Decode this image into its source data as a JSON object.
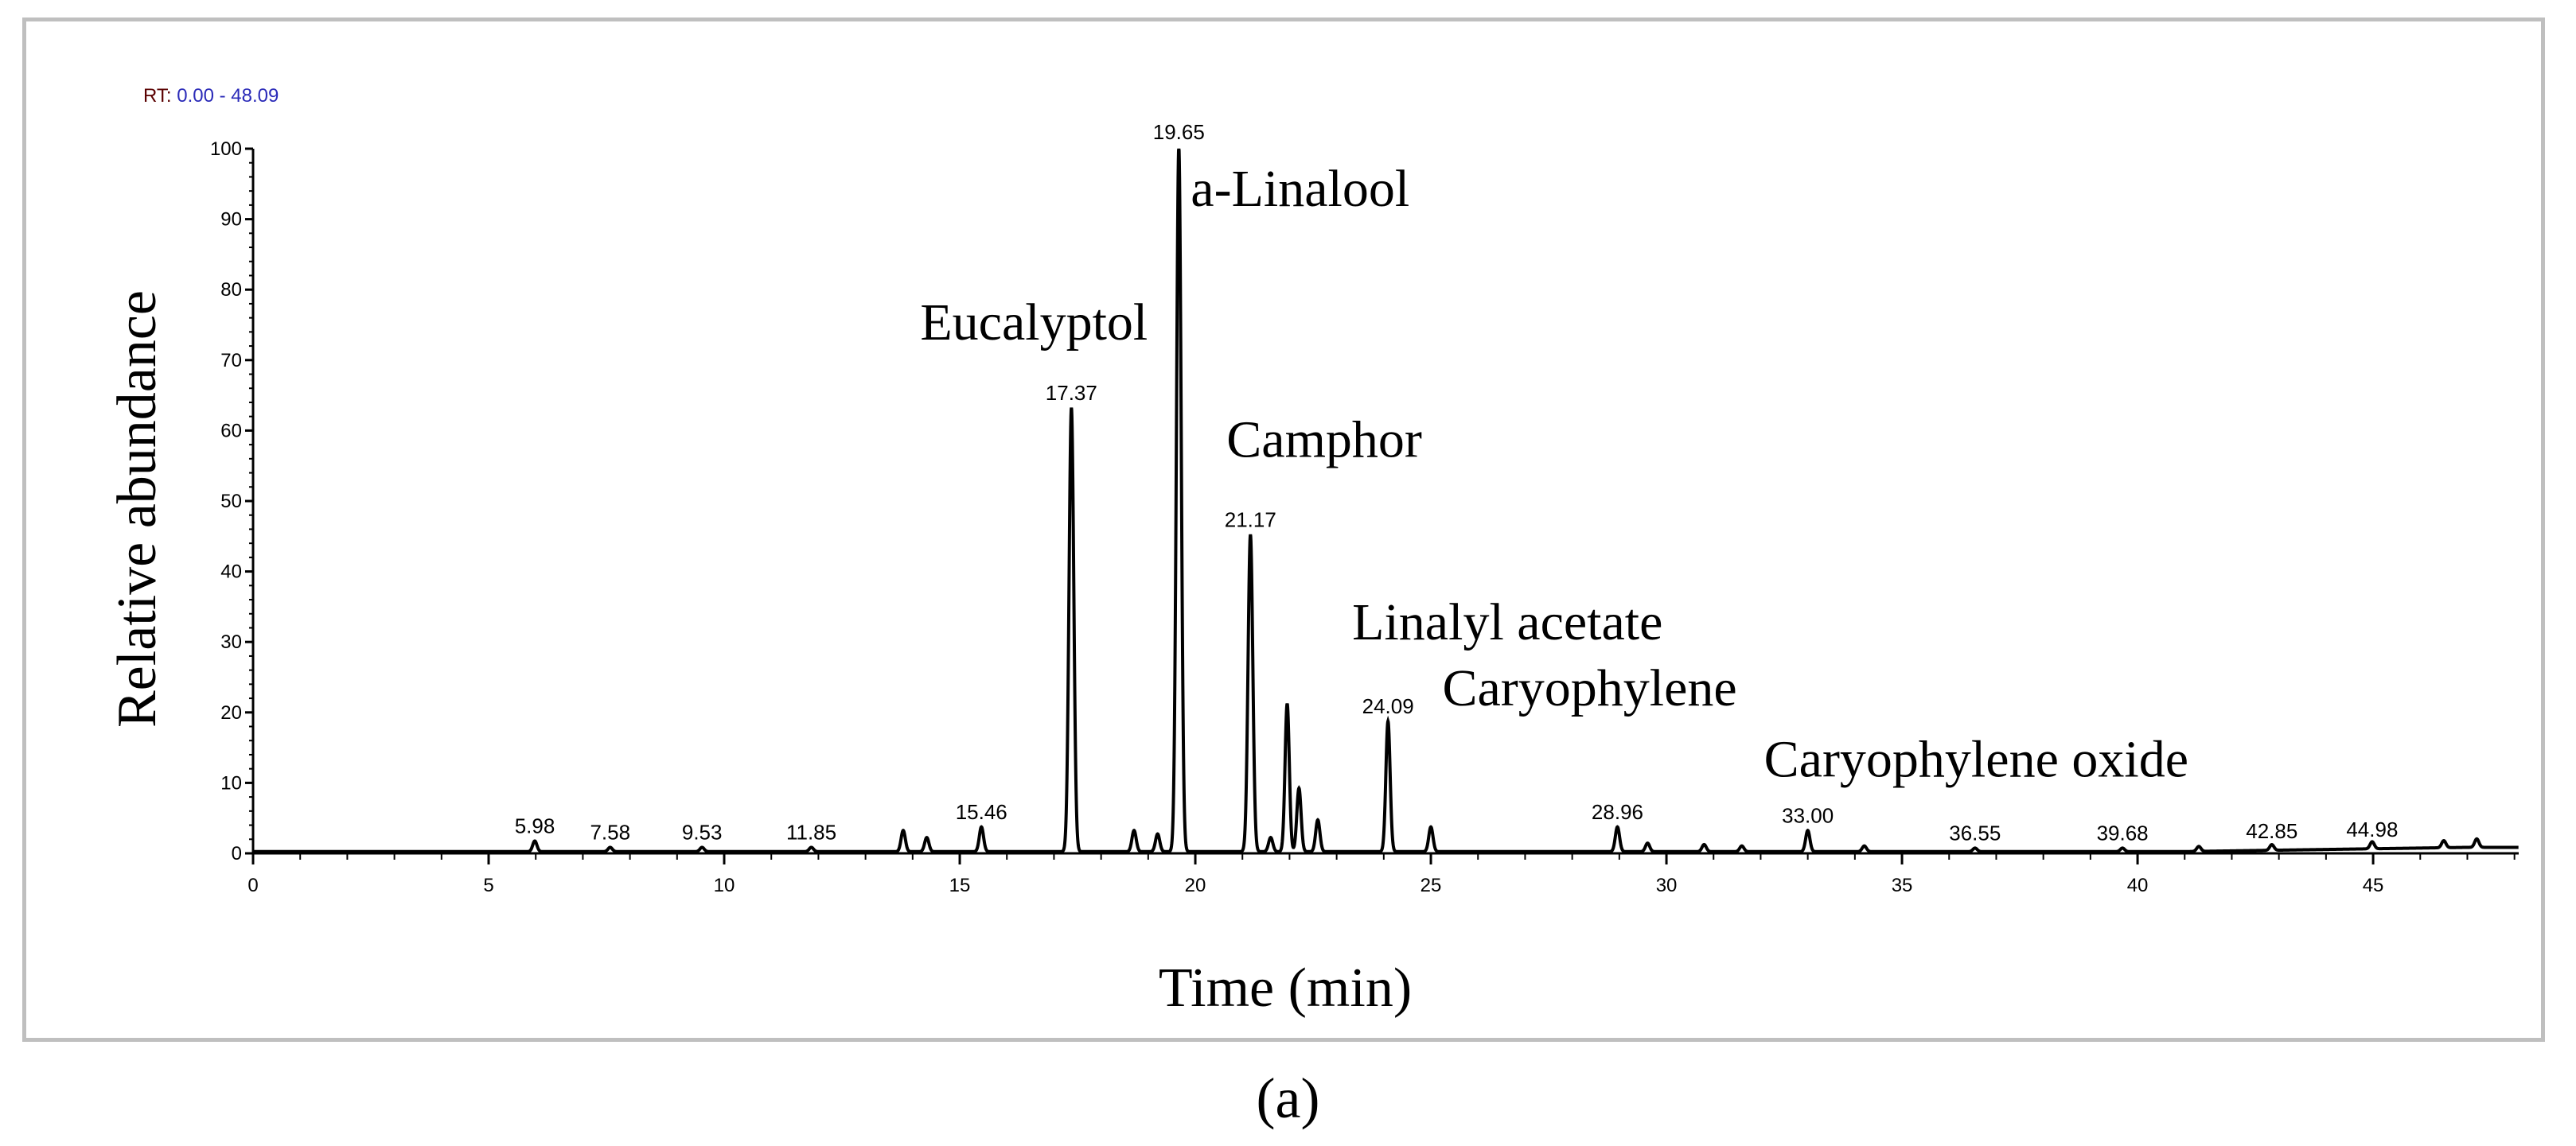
{
  "caption": "(a)",
  "range_label": {
    "prefix": "RT:",
    "value": "0.00 - 48.09"
  },
  "chart_data": {
    "type": "line",
    "title": "",
    "xlabel": "Time (min)",
    "ylabel": "Relative abundance",
    "xlim": [
      0,
      48.09
    ],
    "ylim": [
      0,
      100
    ],
    "xticks": [
      0,
      5,
      10,
      15,
      20,
      25,
      30,
      35,
      40,
      45
    ],
    "yticks": [
      0,
      10,
      20,
      30,
      40,
      50,
      60,
      70,
      80,
      90,
      100
    ],
    "grid": false,
    "legend": "none",
    "peaks": [
      {
        "x": 5.98,
        "y": 1.5,
        "label": "5.98"
      },
      {
        "x": 7.58,
        "y": 0.6,
        "label": "7.58"
      },
      {
        "x": 9.53,
        "y": 0.6,
        "label": "9.53"
      },
      {
        "x": 11.85,
        "y": 0.6,
        "label": "11.85"
      },
      {
        "x": 13.8,
        "y": 3
      },
      {
        "x": 14.3,
        "y": 2
      },
      {
        "x": 15.46,
        "y": 3.5,
        "label": "15.46"
      },
      {
        "x": 17.37,
        "y": 63,
        "label": "17.37"
      },
      {
        "x": 18.7,
        "y": 3
      },
      {
        "x": 19.2,
        "y": 2.5
      },
      {
        "x": 19.65,
        "y": 100,
        "label": "19.65"
      },
      {
        "x": 21.17,
        "y": 45,
        "label": "21.17"
      },
      {
        "x": 21.6,
        "y": 2
      },
      {
        "x": 21.95,
        "y": 21
      },
      {
        "x": 22.2,
        "y": 9
      },
      {
        "x": 22.6,
        "y": 4.5
      },
      {
        "x": 24.09,
        "y": 18.5,
        "label": "24.09"
      },
      {
        "x": 25.0,
        "y": 3.5
      },
      {
        "x": 28.96,
        "y": 3.5,
        "label": "28.96"
      },
      {
        "x": 29.6,
        "y": 1.2
      },
      {
        "x": 30.8,
        "y": 1
      },
      {
        "x": 31.6,
        "y": 0.8
      },
      {
        "x": 33.0,
        "y": 3,
        "label": "33.00"
      },
      {
        "x": 34.2,
        "y": 0.8
      },
      {
        "x": 36.55,
        "y": 0.5,
        "label": "36.55"
      },
      {
        "x": 39.68,
        "y": 0.5,
        "label": "39.68"
      },
      {
        "x": 41.3,
        "y": 0.7
      },
      {
        "x": 42.85,
        "y": 0.8,
        "label": "42.85"
      },
      {
        "x": 44.98,
        "y": 1,
        "label": "44.98"
      },
      {
        "x": 46.5,
        "y": 1
      },
      {
        "x": 47.2,
        "y": 1.2
      }
    ],
    "annotations": [
      {
        "text": "Eucalyptol"
      },
      {
        "text": "a-Linalool"
      },
      {
        "text": "Camphor"
      },
      {
        "text": "Linalyl acetate"
      },
      {
        "text": "Caryophylene"
      },
      {
        "text": "Caryophylene oxide"
      }
    ]
  }
}
